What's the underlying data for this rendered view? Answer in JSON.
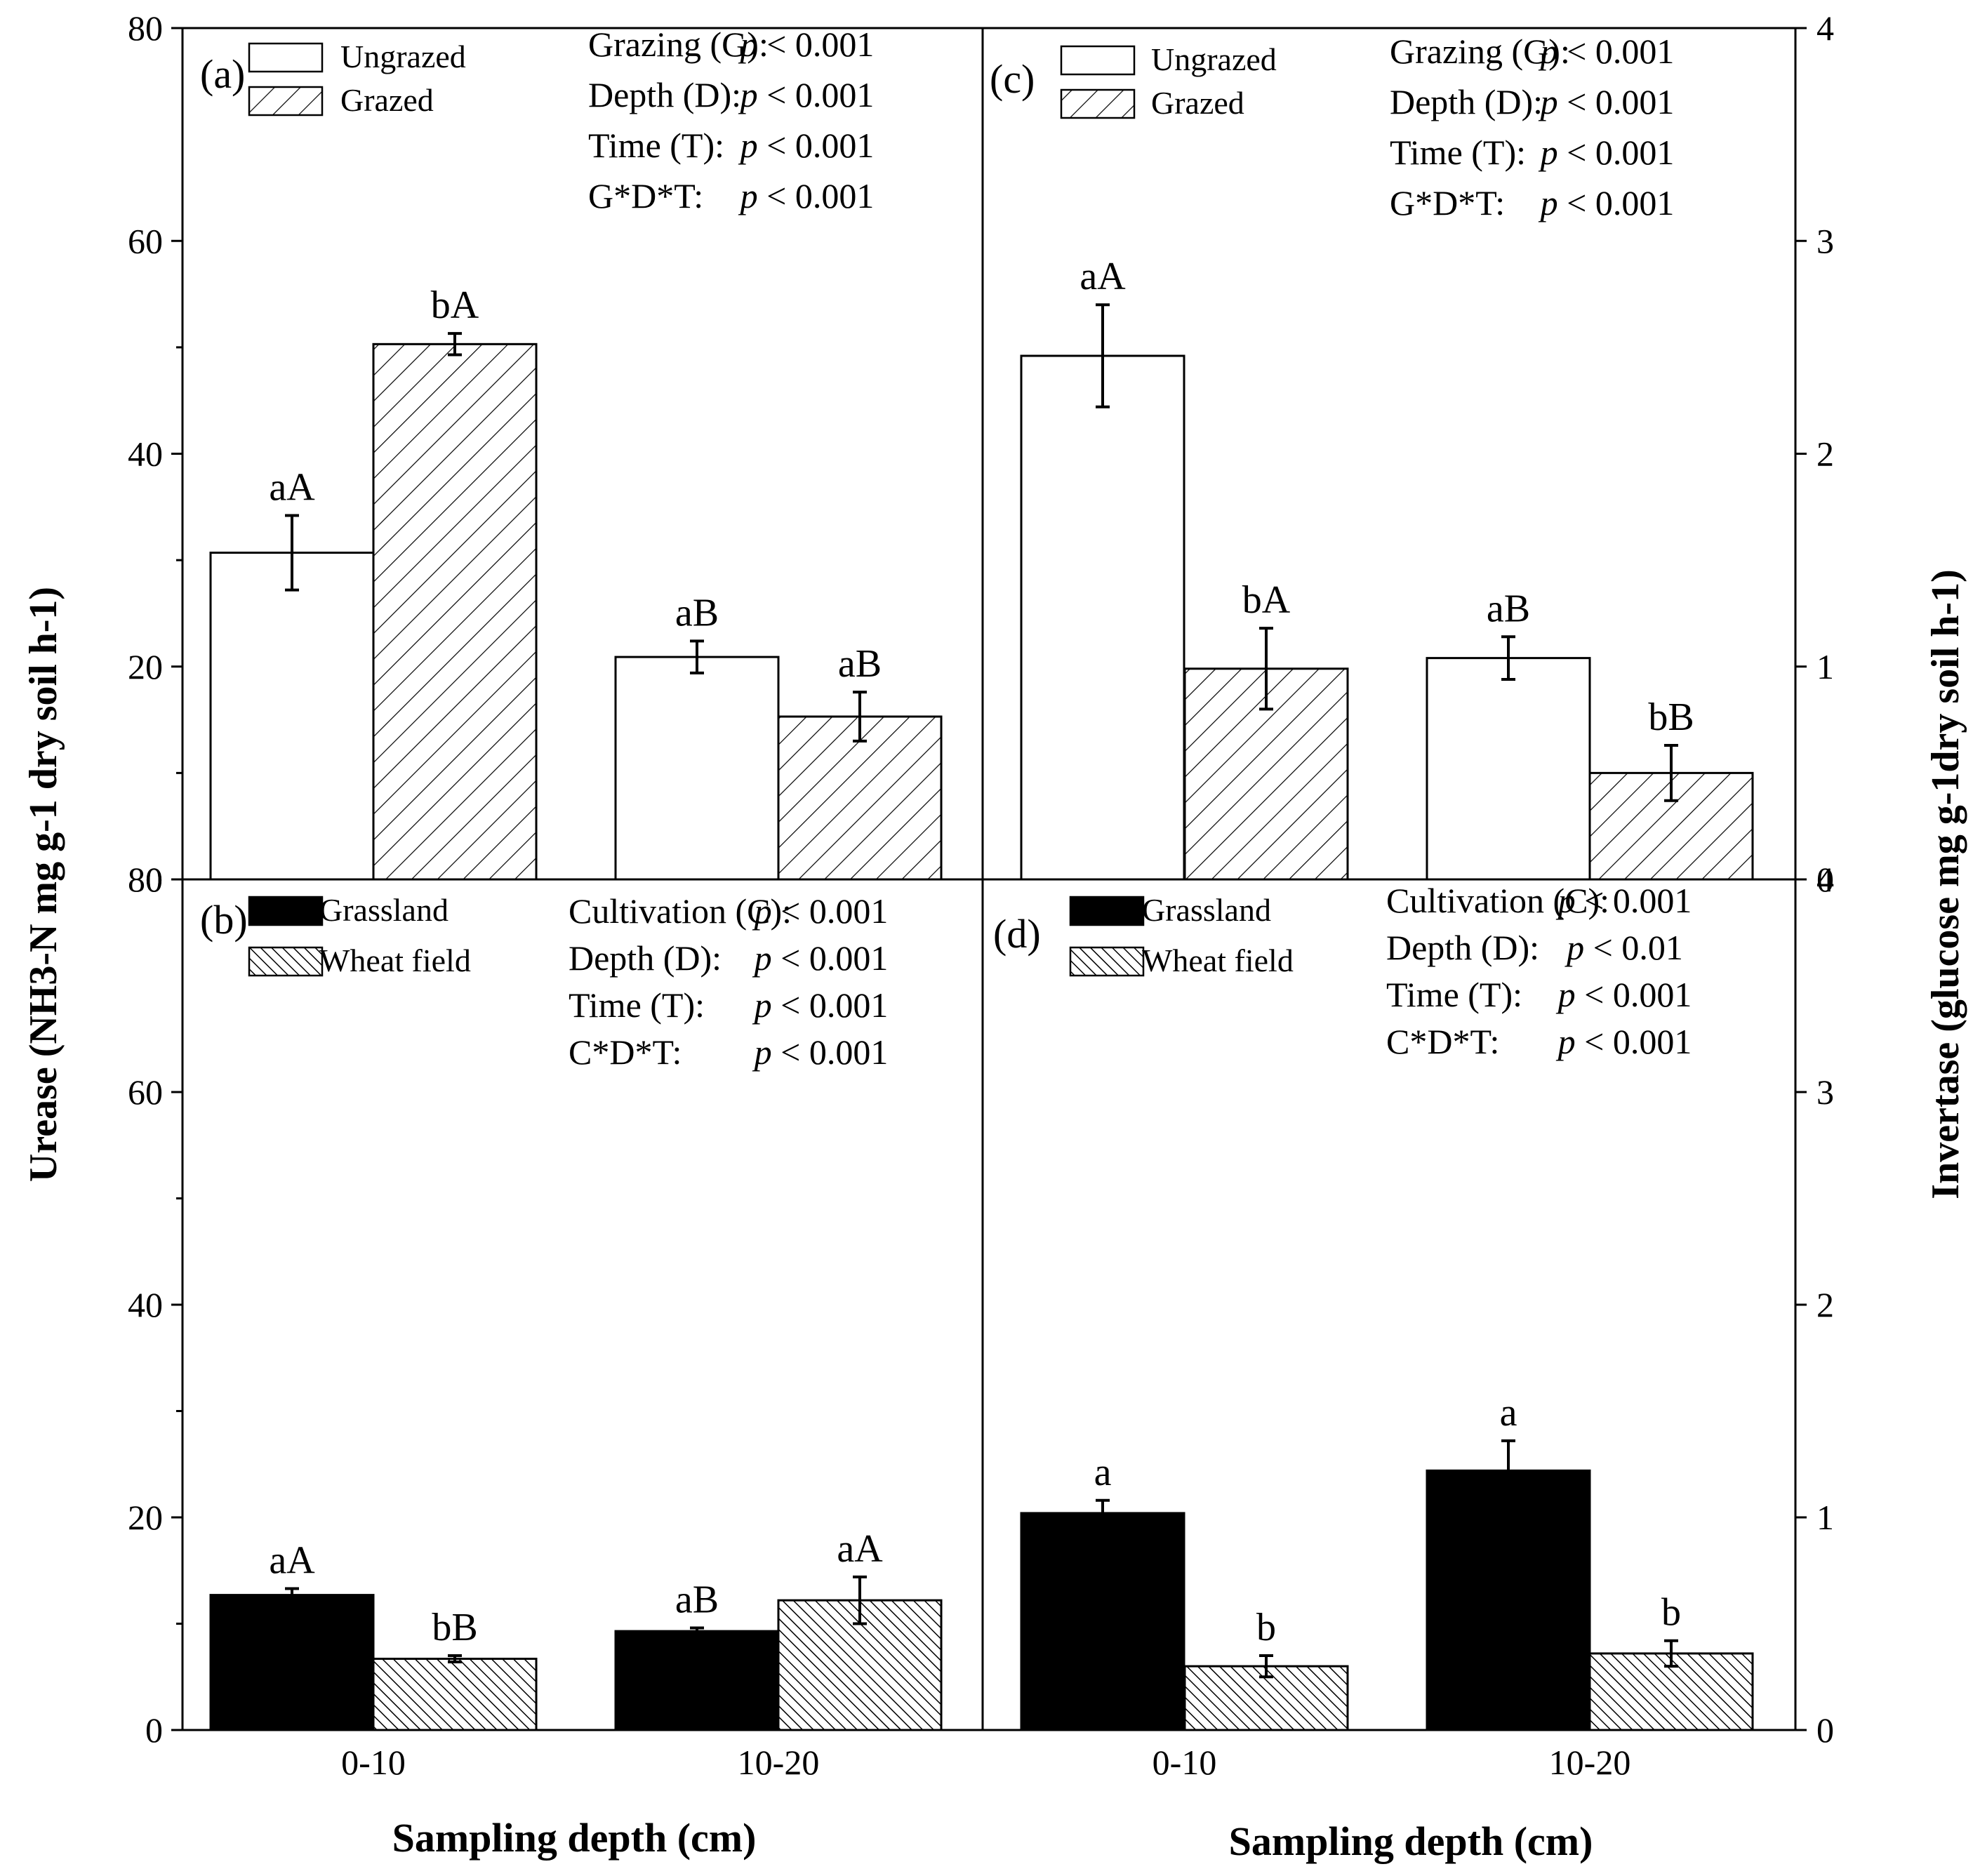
{
  "figure": {
    "ylabel_left": "Urease (NH3-N mg g-1 dry soil h-1)",
    "ylabel_right": "Invertase (glucose mg g-1dry soil h-1)",
    "xlabel": "Sampling depth (cm)"
  },
  "chart_data": [
    {
      "panel": "(a)",
      "type": "bar",
      "categories": [
        "0-10",
        "10-20"
      ],
      "y_axis": "left",
      "ylim": [
        0,
        80
      ],
      "yticks": [
        0,
        20,
        40,
        60,
        80
      ],
      "series": [
        {
          "name": "Ungrazed",
          "pattern": "open",
          "values": [
            30.7,
            20.9
          ],
          "errors": [
            3.5,
            1.5
          ]
        },
        {
          "name": "Grazed",
          "pattern": "hatched",
          "values": [
            50.3,
            15.3
          ],
          "errors": [
            1.0,
            2.3
          ]
        }
      ],
      "bar_labels": [
        [
          "aA",
          "aB"
        ],
        [
          "bA",
          "aB"
        ]
      ],
      "stats": [
        {
          "term": "Grazing (G):",
          "p": "p < 0.001"
        },
        {
          "term": "Depth (D):",
          "p": "p < 0.001"
        },
        {
          "term": "Time (T):",
          "p": "p < 0.001"
        },
        {
          "term": "G*D*T:",
          "p": "p < 0.001"
        }
      ]
    },
    {
      "panel": "(b)",
      "type": "bar",
      "categories": [
        "0-10",
        "10-20"
      ],
      "y_axis": "left",
      "ylim": [
        0,
        80
      ],
      "yticks": [
        0,
        20,
        40,
        60,
        80
      ],
      "series": [
        {
          "name": "Grassland",
          "pattern": "solid",
          "values": [
            12.7,
            9.3
          ],
          "errors": [
            0.6,
            0.3
          ]
        },
        {
          "name": "Wheat field",
          "pattern": "dense-hatched",
          "values": [
            6.7,
            12.2
          ],
          "errors": [
            0.3,
            2.2
          ]
        }
      ],
      "bar_labels": [
        [
          "aA",
          "aB"
        ],
        [
          "bB",
          "aA"
        ]
      ],
      "stats": [
        {
          "term": "Cultivation (C):",
          "p": "p < 0.001"
        },
        {
          "term": "Depth (D):",
          "p": "p < 0.001"
        },
        {
          "term": "Time (T):",
          "p": "p < 0.001"
        },
        {
          "term": "C*D*T:",
          "p": "p < 0.001"
        }
      ]
    },
    {
      "panel": "(c)",
      "type": "bar",
      "categories": [
        "0-10",
        "10-20"
      ],
      "y_axis": "right",
      "ylim": [
        0,
        4
      ],
      "yticks": [
        0,
        1,
        2,
        3,
        4
      ],
      "series": [
        {
          "name": "Ungrazed",
          "pattern": "open",
          "values": [
            2.46,
            1.04
          ],
          "errors": [
            0.24,
            0.1
          ]
        },
        {
          "name": "Grazed",
          "pattern": "hatched",
          "values": [
            0.99,
            0.5
          ],
          "errors": [
            0.19,
            0.13
          ]
        }
      ],
      "bar_labels": [
        [
          "aA",
          "aB"
        ],
        [
          "bA",
          "bB"
        ]
      ],
      "stats": [
        {
          "term": "Grazing (G):",
          "p": "p < 0.001"
        },
        {
          "term": "Depth (D):",
          "p": "p < 0.001"
        },
        {
          "term": "Time (T):",
          "p": "p < 0.001"
        },
        {
          "term": "G*D*T:",
          "p": "p < 0.001"
        }
      ]
    },
    {
      "panel": "(d)",
      "type": "bar",
      "categories": [
        "0-10",
        "10-20"
      ],
      "y_axis": "right",
      "ylim": [
        0,
        4
      ],
      "yticks": [
        0,
        1,
        2,
        3,
        4
      ],
      "series": [
        {
          "name": "Grassland",
          "pattern": "solid",
          "values": [
            1.02,
            1.22
          ],
          "errors": [
            0.06,
            0.14
          ]
        },
        {
          "name": "Wheat field",
          "pattern": "dense-hatched",
          "values": [
            0.3,
            0.36
          ],
          "errors": [
            0.05,
            0.06
          ]
        }
      ],
      "bar_labels": [
        [
          "a",
          "a"
        ],
        [
          "b",
          "b"
        ]
      ],
      "stats": [
        {
          "term": "Cultivation (C):",
          "p": "p < 0.001"
        },
        {
          "term": "Depth (D):",
          "p": "p < 0.01"
        },
        {
          "term": "Time (T):",
          "p": "p < 0.001"
        },
        {
          "term": "C*D*T:",
          "p": "p < 0.001"
        }
      ]
    }
  ]
}
